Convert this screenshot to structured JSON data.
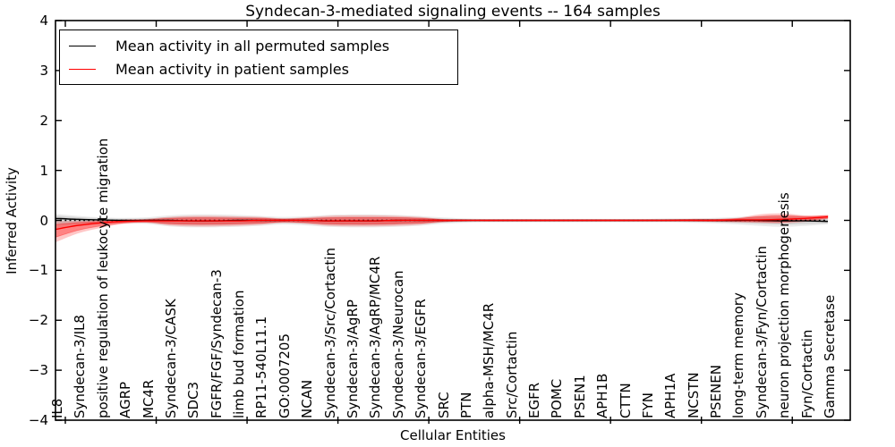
{
  "title": "Syndecan-3-mediated signaling events -- 164 samples",
  "axes": {
    "xlabel": "Cellular Entities",
    "ylabel": "Inferred Activity",
    "ytick_labels": [
      "4",
      "3",
      "2",
      "1",
      "0",
      "−1",
      "−2",
      "−3",
      "−4"
    ]
  },
  "legend": {
    "items": [
      {
        "label": "Mean activity in all permuted samples",
        "color": "#000000"
      },
      {
        "label": "Mean activity in patient samples",
        "color": "#ff0000"
      }
    ]
  },
  "chart_data": {
    "type": "line",
    "title": "Syndecan-3-mediated signaling events -- 164 samples",
    "xlabel": "Cellular Entities",
    "ylabel": "Inferred Activity",
    "ylim": [
      -4,
      4
    ],
    "yticks": [
      -4,
      -3,
      -2,
      -1,
      0,
      1,
      2,
      3,
      4
    ],
    "grid": false,
    "legend_position": "upper left",
    "zero_line": 0,
    "categories": [
      "IL8",
      "Syndecan-3/IL8",
      "positive regulation of leukocyte migration",
      "AGRP",
      "MC4R",
      "Syndecan-3/CASK",
      "SDC3",
      "FGFR/FGF/Syndecan-3",
      "limb bud formation",
      "RP11-540L11.1",
      "GO:0007205",
      "NCAN",
      "Syndecan-3/Src/Cortactin",
      "Syndecan-3/AgRP",
      "Syndecan-3/AgRP/MC4R",
      "Syndecan-3/Neurocan",
      "Syndecan-3/EGFR",
      "SRC",
      "PTN",
      "alpha-MSH/MC4R",
      "Src/Cortactin",
      "EGFR",
      "POMC",
      "PSEN1",
      "APH1B",
      "CTTN",
      "FYN",
      "APH1A",
      "NCSTN",
      "PSENEN",
      "long-term memory",
      "Syndecan-3/Fyn/Cortactin",
      "neuron projection morphogenesis",
      "Fyn/Cortactin",
      "Gamma Secretase"
    ],
    "series": [
      {
        "name": "Mean activity in all permuted samples",
        "color": "#000000",
        "line_style": "solid",
        "values": [
          0.04,
          0.02,
          0.01,
          0,
          0,
          0,
          -0.01,
          -0.01,
          0,
          0,
          0,
          0,
          -0.01,
          -0.01,
          -0.01,
          0,
          0,
          0,
          0,
          0,
          0,
          0,
          0,
          0,
          0,
          0,
          0,
          0,
          0,
          0,
          0,
          0,
          -0.01,
          -0.01,
          -0.02
        ],
        "band_lo": [
          -0.18,
          -0.12,
          -0.08,
          -0.06,
          -0.07,
          -0.12,
          -0.14,
          -0.14,
          -0.13,
          -0.11,
          -0.08,
          -0.1,
          -0.13,
          -0.14,
          -0.14,
          -0.13,
          -0.11,
          -0.07,
          -0.05,
          -0.04,
          -0.04,
          -0.04,
          -0.04,
          -0.04,
          -0.04,
          -0.04,
          -0.04,
          -0.04,
          -0.05,
          -0.06,
          -0.08,
          -0.11,
          -0.13,
          -0.11,
          -0.08
        ],
        "band_hi": [
          0.13,
          0.09,
          0.06,
          0.05,
          0.06,
          0.1,
          0.12,
          0.12,
          0.11,
          0.09,
          0.07,
          0.08,
          0.11,
          0.12,
          0.12,
          0.11,
          0.09,
          0.06,
          0.04,
          0.03,
          0.03,
          0.03,
          0.03,
          0.03,
          0.03,
          0.03,
          0.03,
          0.04,
          0.04,
          0.05,
          0.07,
          0.09,
          0.11,
          0.09,
          0.08
        ]
      },
      {
        "name": "Mean activity in patient samples",
        "color": "#ff0000",
        "line_style": "solid",
        "values": [
          -0.18,
          -0.1,
          -0.05,
          -0.02,
          -0.01,
          -0.01,
          -0.01,
          -0.01,
          -0.01,
          0,
          0,
          0,
          -0.01,
          -0.01,
          -0.01,
          0,
          0,
          0,
          0,
          0,
          0,
          0,
          0,
          0,
          0,
          0,
          0,
          0,
          0,
          0,
          0.01,
          0.01,
          0.02,
          0.04,
          0.07
        ],
        "band_lo": [
          -0.44,
          -0.26,
          -0.15,
          -0.07,
          -0.05,
          -0.1,
          -0.12,
          -0.12,
          -0.11,
          -0.09,
          -0.05,
          -0.07,
          -0.11,
          -0.12,
          -0.12,
          -0.11,
          -0.09,
          -0.04,
          -0.02,
          -0.02,
          -0.02,
          -0.02,
          -0.02,
          -0.02,
          -0.02,
          -0.02,
          -0.02,
          -0.02,
          -0.02,
          -0.03,
          -0.04,
          -0.05,
          -0.06,
          -0.03,
          0.03
        ],
        "band_hi": [
          -0.02,
          -0.01,
          0,
          0.02,
          0.03,
          0.07,
          0.09,
          0.09,
          0.08,
          0.07,
          0.04,
          0.06,
          0.09,
          0.1,
          0.1,
          0.09,
          0.07,
          0.03,
          0.02,
          0.02,
          0.02,
          0.02,
          0.02,
          0.02,
          0.02,
          0.02,
          0.02,
          0.02,
          0.03,
          0.03,
          0.05,
          0.12,
          0.14,
          0.1,
          0.11
        ]
      }
    ]
  }
}
